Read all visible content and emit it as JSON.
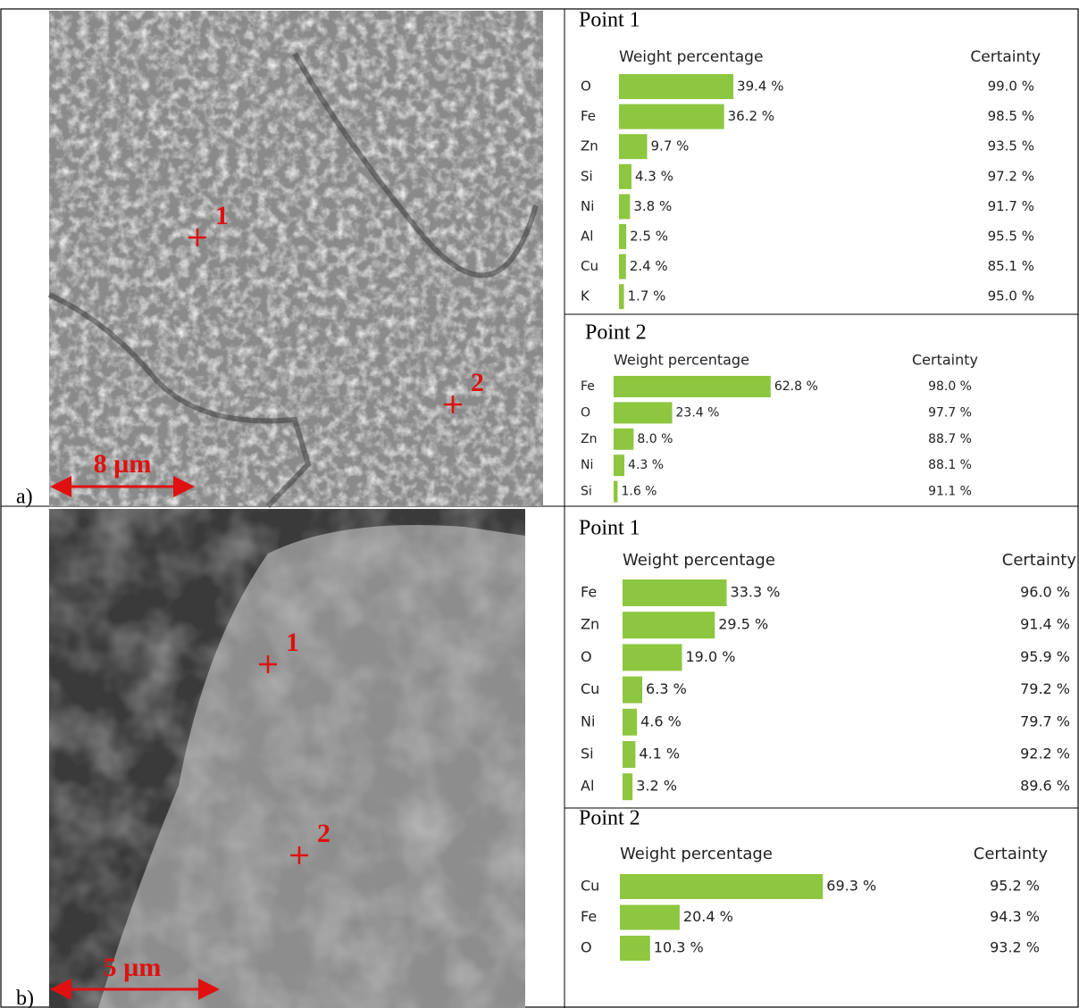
{
  "panels": [
    {
      "label": "a)",
      "scale_bar": "8 µm",
      "markers": [
        "1",
        "2"
      ],
      "tables": [
        {
          "title": "Point 1",
          "value_header": "Weight percentage",
          "certainty_header": "Certainty",
          "rows": [
            {
              "element": "O",
              "weight": 39.4,
              "weight_label": "39.4 %",
              "certainty": "99.0 %"
            },
            {
              "element": "Fe",
              "weight": 36.2,
              "weight_label": "36.2 %",
              "certainty": "98.5 %"
            },
            {
              "element": "Zn",
              "weight": 9.7,
              "weight_label": "9.7 %",
              "certainty": "93.5 %"
            },
            {
              "element": "Si",
              "weight": 4.3,
              "weight_label": "4.3 %",
              "certainty": "97.2 %"
            },
            {
              "element": "Ni",
              "weight": 3.8,
              "weight_label": "3.8 %",
              "certainty": "91.7 %"
            },
            {
              "element": "Al",
              "weight": 2.5,
              "weight_label": "2.5 %",
              "certainty": "95.5 %"
            },
            {
              "element": "Cu",
              "weight": 2.4,
              "weight_label": "2.4 %",
              "certainty": "85.1 %"
            },
            {
              "element": "K",
              "weight": 1.7,
              "weight_label": "1.7 %",
              "certainty": "95.0 %"
            }
          ]
        },
        {
          "title": "Point 2",
          "value_header": "Weight percentage",
          "certainty_header": "Certainty",
          "rows": [
            {
              "element": "Fe",
              "weight": 62.8,
              "weight_label": "62.8 %",
              "certainty": "98.0 %"
            },
            {
              "element": "O",
              "weight": 23.4,
              "weight_label": "23.4 %",
              "certainty": "97.7 %"
            },
            {
              "element": "Zn",
              "weight": 8.0,
              "weight_label": "8.0 %",
              "certainty": "88.7 %"
            },
            {
              "element": "Ni",
              "weight": 4.3,
              "weight_label": "4.3 %",
              "certainty": "88.1 %"
            },
            {
              "element": "Si",
              "weight": 1.6,
              "weight_label": "1.6 %",
              "certainty": "91.1 %"
            }
          ]
        }
      ]
    },
    {
      "label": "b)",
      "scale_bar": "5 µm",
      "markers": [
        "1",
        "2"
      ],
      "tables": [
        {
          "title": "Point 1",
          "value_header": "Weight percentage",
          "certainty_header": "Certainty",
          "rows": [
            {
              "element": "Fe",
              "weight": 33.3,
              "weight_label": "33.3 %",
              "certainty": "96.0 %"
            },
            {
              "element": "Zn",
              "weight": 29.5,
              "weight_label": "29.5 %",
              "certainty": "91.4 %"
            },
            {
              "element": "O",
              "weight": 19.0,
              "weight_label": "19.0 %",
              "certainty": "95.9 %"
            },
            {
              "element": "Cu",
              "weight": 6.3,
              "weight_label": "6.3 %",
              "certainty": "79.2 %"
            },
            {
              "element": "Ni",
              "weight": 4.6,
              "weight_label": "4.6 %",
              "certainty": "79.7 %"
            },
            {
              "element": "Si",
              "weight": 4.1,
              "weight_label": "4.1 %",
              "certainty": "92.2 %"
            },
            {
              "element": "Al",
              "weight": 3.2,
              "weight_label": "3.2 %",
              "certainty": "89.6 %"
            }
          ]
        },
        {
          "title": "Point 2",
          "value_header": "Weight percentage",
          "certainty_header": "Certainty",
          "rows": [
            {
              "element": "Cu",
              "weight": 69.3,
              "weight_label": "69.3 %",
              "certainty": "95.2 %"
            },
            {
              "element": "Fe",
              "weight": 20.4,
              "weight_label": "20.4 %",
              "certainty": "94.3 %"
            },
            {
              "element": "O",
              "weight": 10.3,
              "weight_label": "10.3 %",
              "certainty": "93.2 %"
            }
          ]
        }
      ]
    }
  ]
}
